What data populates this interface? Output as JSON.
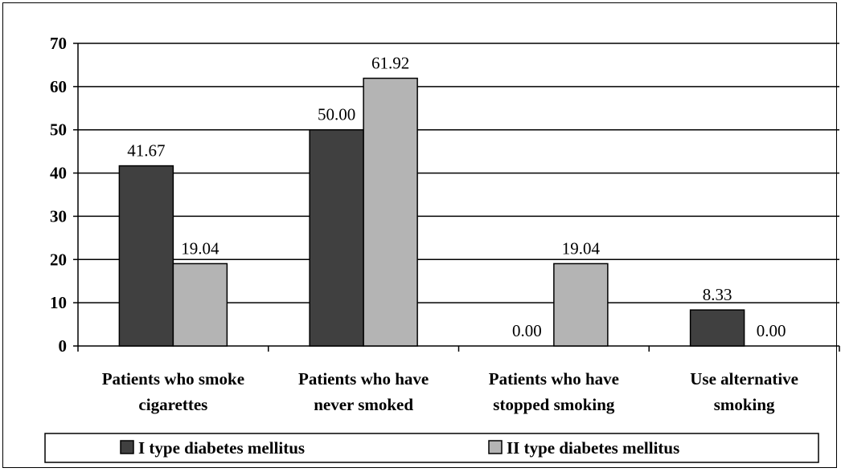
{
  "chart_data": {
    "type": "bar",
    "title": "",
    "xlabel": "",
    "ylabel": "",
    "ylim": [
      0,
      70
    ],
    "yticks": [
      0,
      10,
      20,
      30,
      40,
      50,
      60,
      70
    ],
    "grid": true,
    "legend_position": "bottom",
    "categories": [
      [
        "Patients who smoke",
        "cigarettes"
      ],
      [
        "Patients who have",
        "never smoked"
      ],
      [
        "Patients who have",
        "stopped smoking"
      ],
      [
        "Use alternative",
        "smoking"
      ]
    ],
    "series": [
      {
        "name": "I type diabetes mellitus",
        "color": "#404040",
        "values": [
          41.67,
          50.0,
          0.0,
          8.33
        ],
        "labels": [
          "41.67",
          "50.00",
          "0.00",
          "8.33"
        ]
      },
      {
        "name": "II type diabetes mellitus",
        "color": "#b4b4b4",
        "values": [
          19.04,
          61.92,
          19.04,
          0.0
        ],
        "labels": [
          "19.04",
          "61.92",
          "19.04",
          "0.00"
        ]
      }
    ]
  }
}
